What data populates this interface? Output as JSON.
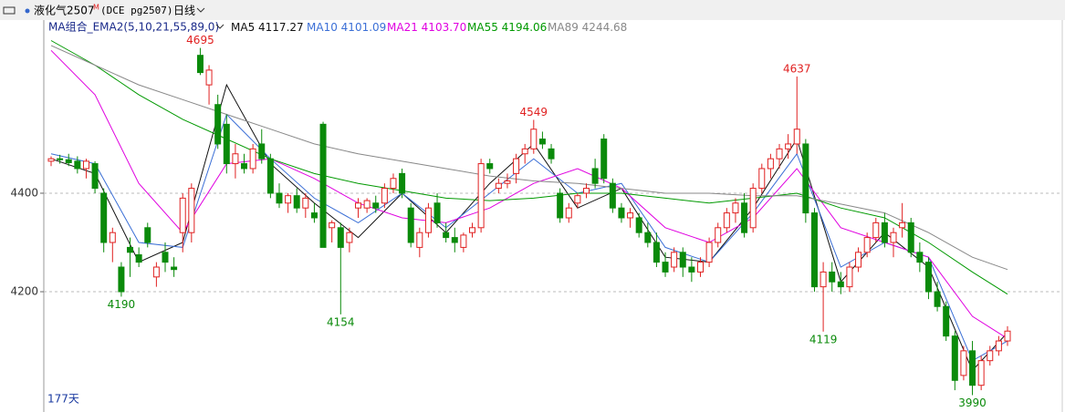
{
  "header": {
    "symbol": "液化气2507",
    "badge": "M",
    "code": "(DCE pg2507)",
    "period": "日线"
  },
  "chart_data": {
    "type": "candlestick",
    "indicator": "MA组合_EMA2(5,10,21,55,89,0)",
    "footer": "177天",
    "up_color": "#e02020",
    "down_color": "#0a8a0a",
    "ylim": [
      3965,
      4722
    ],
    "yticks": [
      4200,
      4400
    ],
    "grid": true,
    "ohlc": [
      [
        4465,
        4475,
        4455,
        4470
      ],
      [
        4470,
        4478,
        4460,
        4468
      ],
      [
        4468,
        4480,
        4455,
        4462
      ],
      [
        4465,
        4475,
        4440,
        4450
      ],
      [
        4450,
        4470,
        4430,
        4465
      ],
      [
        4460,
        4465,
        4400,
        4410
      ],
      [
        4400,
        4410,
        4280,
        4300
      ],
      [
        4300,
        4330,
        4260,
        4320
      ],
      [
        4250,
        4260,
        4190,
        4200
      ],
      [
        4290,
        4310,
        4230,
        4280
      ],
      [
        4275,
        4290,
        4250,
        4260
      ],
      [
        4330,
        4340,
        4290,
        4300
      ],
      [
        4230,
        4260,
        4210,
        4250
      ],
      [
        4280,
        4300,
        4240,
        4260
      ],
      [
        4250,
        4270,
        4230,
        4245
      ],
      [
        4320,
        4400,
        4280,
        4390
      ],
      [
        4320,
        4420,
        4300,
        4410
      ],
      [
        4680,
        4695,
        4640,
        4645
      ],
      [
        4620,
        4660,
        4580,
        4650
      ],
      [
        4580,
        4600,
        4490,
        4500
      ],
      [
        4540,
        4560,
        4440,
        4460
      ],
      [
        4460,
        4500,
        4430,
        4480
      ],
      [
        4460,
        4480,
        4440,
        4450
      ],
      [
        4450,
        4500,
        4440,
        4490
      ],
      [
        4500,
        4530,
        4460,
        4470
      ],
      [
        4470,
        4480,
        4390,
        4400
      ],
      [
        4400,
        4420,
        4370,
        4380
      ],
      [
        4380,
        4400,
        4360,
        4395
      ],
      [
        4395,
        4410,
        4360,
        4370
      ],
      [
        4370,
        4400,
        4350,
        4390
      ],
      [
        4360,
        4380,
        4340,
        4350
      ],
      [
        4540,
        4545,
        4290,
        4290
      ],
      [
        4330,
        4345,
        4300,
        4340
      ],
      [
        4330,
        4340,
        4154,
        4290
      ],
      [
        4300,
        4330,
        4280,
        4320
      ],
      [
        4370,
        4390,
        4350,
        4380
      ],
      [
        4370,
        4390,
        4360,
        4385
      ],
      [
        4380,
        4395,
        4360,
        4370
      ],
      [
        4380,
        4420,
        4370,
        4410
      ],
      [
        4410,
        4440,
        4400,
        4430
      ],
      [
        4440,
        4450,
        4390,
        4400
      ],
      [
        4370,
        4380,
        4290,
        4300
      ],
      [
        4290,
        4330,
        4270,
        4320
      ],
      [
        4320,
        4380,
        4310,
        4370
      ],
      [
        4380,
        4400,
        4330,
        4340
      ],
      [
        4320,
        4340,
        4300,
        4310
      ],
      [
        4310,
        4330,
        4280,
        4300
      ],
      [
        4290,
        4320,
        4280,
        4315
      ],
      [
        4320,
        4340,
        4310,
        4330
      ],
      [
        4330,
        4470,
        4320,
        4460
      ],
      [
        4460,
        4470,
        4440,
        4450
      ],
      [
        4410,
        4430,
        4400,
        4420
      ],
      [
        4420,
        4440,
        4410,
        4425
      ],
      [
        4440,
        4480,
        4420,
        4470
      ],
      [
        4480,
        4500,
        4460,
        4490
      ],
      [
        4490,
        4549,
        4480,
        4530
      ],
      [
        4510,
        4525,
        4490,
        4500
      ],
      [
        4490,
        4500,
        4460,
        4470
      ],
      [
        4400,
        4410,
        4340,
        4350
      ],
      [
        4350,
        4380,
        4340,
        4370
      ],
      [
        4380,
        4400,
        4370,
        4395
      ],
      [
        4400,
        4420,
        4390,
        4410
      ],
      [
        4450,
        4470,
        4410,
        4420
      ],
      [
        4510,
        4520,
        4420,
        4430
      ],
      [
        4420,
        4430,
        4360,
        4370
      ],
      [
        4370,
        4380,
        4340,
        4350
      ],
      [
        4350,
        4370,
        4330,
        4360
      ],
      [
        4350,
        4360,
        4310,
        4320
      ],
      [
        4320,
        4340,
        4290,
        4300
      ],
      [
        4300,
        4320,
        4250,
        4260
      ],
      [
        4260,
        4280,
        4230,
        4240
      ],
      [
        4250,
        4290,
        4240,
        4280
      ],
      [
        4280,
        4290,
        4230,
        4250
      ],
      [
        4250,
        4270,
        4220,
        4240
      ],
      [
        4240,
        4270,
        4230,
        4260
      ],
      [
        4260,
        4310,
        4250,
        4300
      ],
      [
        4300,
        4340,
        4290,
        4330
      ],
      [
        4330,
        4370,
        4320,
        4360
      ],
      [
        4360,
        4390,
        4340,
        4380
      ],
      [
        4380,
        4400,
        4310,
        4320
      ],
      [
        4330,
        4420,
        4320,
        4410
      ],
      [
        4410,
        4460,
        4400,
        4450
      ],
      [
        4450,
        4480,
        4430,
        4470
      ],
      [
        4470,
        4500,
        4450,
        4490
      ],
      [
        4490,
        4520,
        4470,
        4500
      ],
      [
        4500,
        4637,
        4480,
        4530
      ],
      [
        4500,
        4510,
        4340,
        4360
      ],
      [
        4360,
        4370,
        4200,
        4210
      ],
      [
        4210,
        4260,
        4119,
        4240
      ],
      [
        4240,
        4260,
        4200,
        4220
      ],
      [
        4220,
        4240,
        4195,
        4210
      ],
      [
        4210,
        4260,
        4200,
        4250
      ],
      [
        4250,
        4290,
        4240,
        4280
      ],
      [
        4280,
        4320,
        4270,
        4310
      ],
      [
        4310,
        4350,
        4300,
        4340
      ],
      [
        4340,
        4360,
        4290,
        4300
      ],
      [
        4300,
        4330,
        4270,
        4320
      ],
      [
        4330,
        4380,
        4310,
        4340
      ],
      [
        4340,
        4350,
        4270,
        4280
      ],
      [
        4280,
        4300,
        4240,
        4260
      ],
      [
        4260,
        4270,
        4185,
        4200
      ],
      [
        4200,
        4220,
        4160,
        4170
      ],
      [
        4170,
        4180,
        4100,
        4110
      ],
      [
        4110,
        4120,
        4000,
        4020
      ],
      [
        4030,
        4090,
        4020,
        4080
      ],
      [
        4080,
        4100,
        3990,
        4010
      ],
      [
        4010,
        4070,
        4000,
        4060
      ],
      [
        4060,
        4090,
        4050,
        4080
      ],
      [
        4080,
        4110,
        4070,
        4100
      ],
      [
        4100,
        4130,
        4090,
        4120
      ]
    ],
    "annotations": [
      4695,
      4190,
      4154,
      4549,
      4637,
      4119,
      3990
    ],
    "series": [
      {
        "name": "MA5",
        "last": "4117.27",
        "color": "#111111",
        "x": [
          0,
          5,
          10,
          15,
          20,
          25,
          30,
          35,
          40,
          45,
          50,
          55,
          60,
          65,
          70,
          75,
          80,
          85,
          90,
          95,
          100,
          105,
          109
        ],
        "values": [
          4470,
          4440,
          4260,
          4300,
          4620,
          4460,
          4380,
          4310,
          4400,
          4320,
          4420,
          4500,
          4370,
          4410,
          4270,
          4260,
          4370,
          4510,
          4220,
          4320,
          4250,
          4040,
          4117
        ]
      },
      {
        "name": "MA10",
        "last": "4101.09",
        "color": "#3b6fd6",
        "x": [
          0,
          5,
          10,
          15,
          20,
          25,
          30,
          35,
          40,
          45,
          50,
          55,
          60,
          65,
          70,
          75,
          80,
          85,
          90,
          95,
          100,
          105,
          109
        ],
        "values": [
          4480,
          4460,
          4300,
          4290,
          4560,
          4470,
          4390,
          4340,
          4400,
          4330,
          4400,
          4470,
          4400,
          4420,
          4290,
          4260,
          4360,
          4480,
          4250,
          4300,
          4270,
          4060,
          4100
        ]
      },
      {
        "name": "MA21",
        "last": "4103.70",
        "color": "#e000e0",
        "x": [
          0,
          5,
          10,
          15,
          20,
          25,
          30,
          35,
          40,
          45,
          50,
          55,
          60,
          65,
          70,
          75,
          80,
          85,
          90,
          95,
          100,
          105,
          109
        ],
        "values": [
          4690,
          4600,
          4420,
          4320,
          4460,
          4470,
          4430,
          4380,
          4350,
          4340,
          4370,
          4420,
          4450,
          4410,
          4330,
          4300,
          4350,
          4450,
          4330,
          4300,
          4270,
          4150,
          4105
        ]
      },
      {
        "name": "MA55",
        "last": "4194.06",
        "color": "#009900",
        "x": [
          0,
          5,
          10,
          15,
          20,
          25,
          30,
          35,
          40,
          45,
          50,
          55,
          60,
          65,
          70,
          75,
          80,
          85,
          90,
          95,
          100,
          105,
          109
        ],
        "values": [
          4710,
          4660,
          4600,
          4550,
          4510,
          4470,
          4440,
          4420,
          4405,
          4390,
          4385,
          4390,
          4400,
          4400,
          4390,
          4380,
          4390,
          4400,
          4370,
          4350,
          4300,
          4240,
          4195
        ]
      },
      {
        "name": "MA89",
        "last": "4244.68",
        "color": "#888888",
        "x": [
          0,
          5,
          10,
          15,
          20,
          25,
          30,
          35,
          40,
          45,
          50,
          55,
          60,
          65,
          70,
          75,
          80,
          85,
          90,
          95,
          100,
          105,
          109
        ],
        "values": [
          4700,
          4660,
          4620,
          4590,
          4560,
          4530,
          4500,
          4480,
          4465,
          4450,
          4435,
          4425,
          4420,
          4410,
          4400,
          4400,
          4395,
          4395,
          4378,
          4360,
          4320,
          4270,
          4245
        ]
      }
    ]
  }
}
